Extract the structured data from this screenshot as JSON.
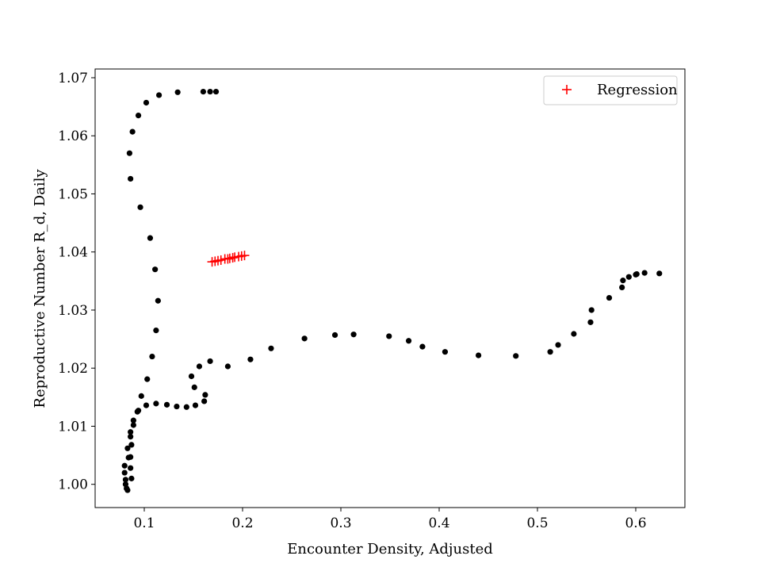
{
  "chart_data": {
    "type": "scatter",
    "xlabel": "Encounter Density, Adjusted",
    "ylabel": "Reproductive Number R_d, Daily",
    "xlim": [
      0.05,
      0.65
    ],
    "ylim": [
      0.996,
      1.0715
    ],
    "x_ticks": [
      0.1,
      0.2,
      0.3,
      0.4,
      0.5,
      0.6
    ],
    "x_tick_labels": [
      "0.1",
      "0.2",
      "0.3",
      "0.4",
      "0.5",
      "0.6"
    ],
    "y_ticks": [
      1.0,
      1.01,
      1.02,
      1.03,
      1.04,
      1.05,
      1.06,
      1.07
    ],
    "y_tick_labels": [
      "1.00",
      "1.01",
      "1.02",
      "1.03",
      "1.04",
      "1.05",
      "1.06",
      "1.07"
    ],
    "grid": false,
    "legend_position": "top-right",
    "colors": {
      "observed": "#000000",
      "regression": "#ff0000"
    },
    "series": [
      {
        "marker": "dot",
        "color": "#000000",
        "points": [
          [
            0.083,
            0.999
          ],
          [
            0.082,
            0.9993
          ],
          [
            0.081,
            1.0
          ],
          [
            0.081,
            1.0008
          ],
          [
            0.087,
            1.001
          ],
          [
            0.08,
            1.002
          ],
          [
            0.086,
            1.0028
          ],
          [
            0.08,
            1.0032
          ],
          [
            0.084,
            1.0046
          ],
          [
            0.086,
            1.0047
          ],
          [
            0.083,
            1.0062
          ],
          [
            0.087,
            1.0068
          ],
          [
            0.086,
            1.0082
          ],
          [
            0.086,
            1.009
          ],
          [
            0.089,
            1.0102
          ],
          [
            0.089,
            1.011
          ],
          [
            0.093,
            1.0125
          ],
          [
            0.094,
            1.0127
          ],
          [
            0.097,
            1.0152
          ],
          [
            0.102,
            1.0136
          ],
          [
            0.112,
            1.0139
          ],
          [
            0.123,
            1.0137
          ],
          [
            0.133,
            1.0134
          ],
          [
            0.143,
            1.0133
          ],
          [
            0.152,
            1.0136
          ],
          [
            0.161,
            1.0143
          ],
          [
            0.162,
            1.0154
          ],
          [
            0.151,
            1.0167
          ],
          [
            0.148,
            1.0186
          ],
          [
            0.156,
            1.0203
          ],
          [
            0.167,
            1.0212
          ],
          [
            0.185,
            1.0203
          ],
          [
            0.208,
            1.0215
          ],
          [
            0.229,
            1.0234
          ],
          [
            0.263,
            1.0251
          ],
          [
            0.294,
            1.0257
          ],
          [
            0.313,
            1.0258
          ],
          [
            0.349,
            1.0255
          ],
          [
            0.369,
            1.0247
          ],
          [
            0.383,
            1.0237
          ],
          [
            0.406,
            1.0228
          ],
          [
            0.44,
            1.0222
          ],
          [
            0.478,
            1.0221
          ],
          [
            0.513,
            1.0228
          ],
          [
            0.521,
            1.024
          ],
          [
            0.537,
            1.0259
          ],
          [
            0.554,
            1.0279
          ],
          [
            0.555,
            1.03
          ],
          [
            0.573,
            1.0321
          ],
          [
            0.586,
            1.0339
          ],
          [
            0.587,
            1.0351
          ],
          [
            0.593,
            1.0357
          ],
          [
            0.6,
            1.0361
          ],
          [
            0.601,
            1.0362
          ],
          [
            0.609,
            1.0364
          ],
          [
            0.624,
            1.0363
          ],
          [
            0.103,
            1.0181
          ],
          [
            0.108,
            1.022
          ],
          [
            0.112,
            1.0265
          ],
          [
            0.114,
            1.0316
          ],
          [
            0.111,
            1.037
          ],
          [
            0.106,
            1.0424
          ],
          [
            0.096,
            1.0477
          ],
          [
            0.086,
            1.0526
          ],
          [
            0.085,
            1.057
          ],
          [
            0.088,
            1.0607
          ],
          [
            0.094,
            1.0635
          ],
          [
            0.102,
            1.0657
          ],
          [
            0.115,
            1.067
          ],
          [
            0.134,
            1.0675
          ],
          [
            0.16,
            1.0676
          ],
          [
            0.167,
            1.0676
          ],
          [
            0.173,
            1.0676
          ]
        ]
      },
      {
        "name": "Regression",
        "marker": "plus",
        "color": "#ff0000",
        "points": [
          [
            0.169,
            1.0383
          ],
          [
            0.172,
            1.0384
          ],
          [
            0.175,
            1.0385
          ],
          [
            0.178,
            1.0386
          ],
          [
            0.182,
            1.0388
          ],
          [
            0.185,
            1.0388
          ],
          [
            0.187,
            1.0389
          ],
          [
            0.19,
            1.039
          ],
          [
            0.192,
            1.0391
          ],
          [
            0.196,
            1.0392
          ],
          [
            0.199,
            1.0393
          ],
          [
            0.202,
            1.0394
          ]
        ]
      }
    ]
  }
}
